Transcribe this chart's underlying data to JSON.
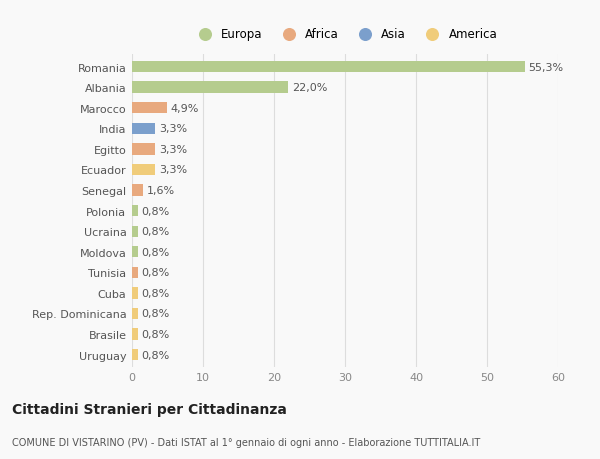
{
  "countries": [
    "Romania",
    "Albania",
    "Marocco",
    "India",
    "Egitto",
    "Ecuador",
    "Senegal",
    "Polonia",
    "Ucraina",
    "Moldova",
    "Tunisia",
    "Cuba",
    "Rep. Dominicana",
    "Brasile",
    "Uruguay"
  ],
  "values": [
    55.3,
    22.0,
    4.9,
    3.3,
    3.3,
    3.3,
    1.6,
    0.8,
    0.8,
    0.8,
    0.8,
    0.8,
    0.8,
    0.8,
    0.8
  ],
  "labels": [
    "55,3%",
    "22,0%",
    "4,9%",
    "3,3%",
    "3,3%",
    "3,3%",
    "1,6%",
    "0,8%",
    "0,8%",
    "0,8%",
    "0,8%",
    "0,8%",
    "0,8%",
    "0,8%",
    "0,8%"
  ],
  "continents": [
    "Europa",
    "Europa",
    "Africa",
    "Asia",
    "Africa",
    "America",
    "Africa",
    "Europa",
    "Europa",
    "Europa",
    "Africa",
    "America",
    "America",
    "America",
    "America"
  ],
  "continent_colors": {
    "Europa": "#b5cc8e",
    "Africa": "#e8a97e",
    "Asia": "#7b9fcc",
    "America": "#f0cc7a"
  },
  "legend_order": [
    "Europa",
    "Africa",
    "Asia",
    "America"
  ],
  "xlim": [
    0,
    60
  ],
  "xticks": [
    0,
    10,
    20,
    30,
    40,
    50,
    60
  ],
  "title": "Cittadini Stranieri per Cittadinanza",
  "subtitle": "COMUNE DI VISTARINO (PV) - Dati ISTAT al 1° gennaio di ogni anno - Elaborazione TUTTITALIA.IT",
  "background_color": "#f9f9f9",
  "bar_height": 0.55,
  "grid_color": "#dddddd",
  "label_fontsize": 8,
  "tick_fontsize": 8,
  "title_fontsize": 10,
  "subtitle_fontsize": 7
}
